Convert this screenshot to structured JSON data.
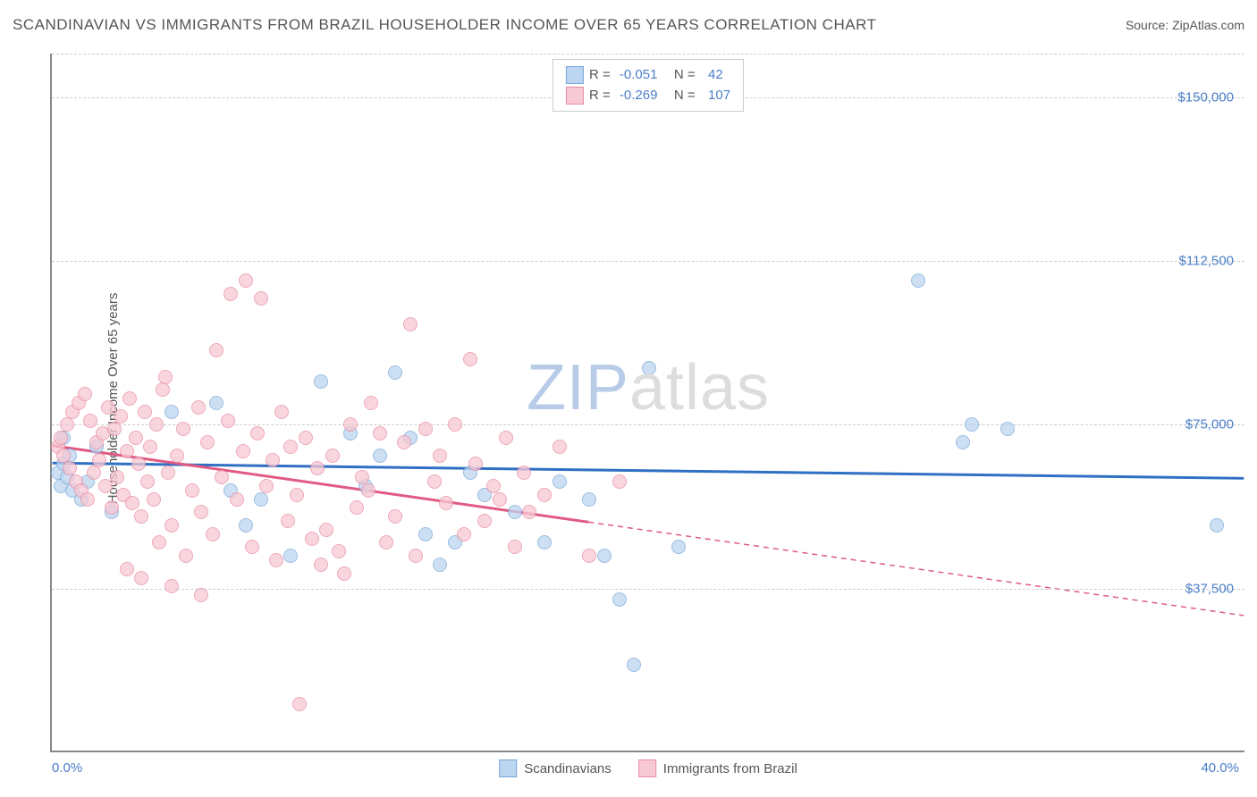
{
  "title": "SCANDINAVIAN VS IMMIGRANTS FROM BRAZIL HOUSEHOLDER INCOME OVER 65 YEARS CORRELATION CHART",
  "source": "Source: ZipAtlas.com",
  "ylabel": "Householder Income Over 65 years",
  "watermark": {
    "part1": "ZIP",
    "part2": "atlas"
  },
  "chart": {
    "type": "scatter",
    "xlim": [
      0,
      40
    ],
    "ylim": [
      0,
      160000
    ],
    "x_ticks": [
      {
        "value": 0,
        "label": "0.0%"
      },
      {
        "value": 40,
        "label": "40.0%"
      }
    ],
    "y_gridlines": [
      {
        "value": 37500,
        "label": "$37,500"
      },
      {
        "value": 75000,
        "label": "$75,000"
      },
      {
        "value": 112500,
        "label": "$112,500"
      },
      {
        "value": 150000,
        "label": "$150,000"
      }
    ],
    "plot_bg": "#ffffff",
    "grid_color": "#cccccc",
    "axis_color": "#888888",
    "tick_label_color": "#4a7ec9",
    "marker_radius": 8
  },
  "series": [
    {
      "name": "Scandinavians",
      "key": "scandinavians",
      "fill": "#bcd5f0",
      "stroke": "#7aa8d8",
      "line_color": "#2f6fc4",
      "R": "-0.051",
      "N": "42",
      "trend": {
        "x1": 0,
        "y1": 66000,
        "x2": 40,
        "y2": 62500,
        "solid_until_x": 40
      },
      "points": [
        [
          0.2,
          64000
        ],
        [
          0.3,
          61000
        ],
        [
          0.4,
          66000
        ],
        [
          0.5,
          63000
        ],
        [
          0.6,
          68000
        ],
        [
          0.7,
          60000
        ],
        [
          0.4,
          72000
        ],
        [
          1.0,
          58000
        ],
        [
          1.2,
          62000
        ],
        [
          1.5,
          70000
        ],
        [
          2.0,
          55000
        ],
        [
          4.0,
          78000
        ],
        [
          5.5,
          80000
        ],
        [
          6.0,
          60000
        ],
        [
          6.5,
          52000
        ],
        [
          7.0,
          58000
        ],
        [
          8.0,
          45000
        ],
        [
          9.0,
          85000
        ],
        [
          10.0,
          73000
        ],
        [
          10.5,
          61000
        ],
        [
          11.0,
          68000
        ],
        [
          11.5,
          87000
        ],
        [
          12.0,
          72000
        ],
        [
          12.5,
          50000
        ],
        [
          13.0,
          43000
        ],
        [
          13.5,
          48000
        ],
        [
          14.0,
          64000
        ],
        [
          14.5,
          59000
        ],
        [
          15.5,
          55000
        ],
        [
          16.5,
          48000
        ],
        [
          17.0,
          62000
        ],
        [
          18.0,
          58000
        ],
        [
          18.5,
          45000
        ],
        [
          19.0,
          35000
        ],
        [
          19.5,
          20000
        ],
        [
          20.0,
          88000
        ],
        [
          21.0,
          47000
        ],
        [
          29.0,
          108000
        ],
        [
          30.5,
          71000
        ],
        [
          30.8,
          75000
        ],
        [
          32.0,
          74000
        ],
        [
          39.0,
          52000
        ]
      ]
    },
    {
      "name": "Immigrants from Brazil",
      "key": "brazil",
      "fill": "#f7c9d4",
      "stroke": "#e88ba3",
      "line_color": "#e05a82",
      "R": "-0.269",
      "N": "107",
      "trend": {
        "x1": 0,
        "y1": 70000,
        "x2": 40,
        "y2": 31000,
        "solid_until_x": 18
      },
      "points": [
        [
          0.2,
          70000
        ],
        [
          0.3,
          72000
        ],
        [
          0.4,
          68000
        ],
        [
          0.5,
          75000
        ],
        [
          0.6,
          65000
        ],
        [
          0.7,
          78000
        ],
        [
          0.8,
          62000
        ],
        [
          0.9,
          80000
        ],
        [
          1.0,
          60000
        ],
        [
          1.1,
          82000
        ],
        [
          1.2,
          58000
        ],
        [
          1.3,
          76000
        ],
        [
          1.4,
          64000
        ],
        [
          1.5,
          71000
        ],
        [
          1.6,
          67000
        ],
        [
          1.7,
          73000
        ],
        [
          1.8,
          61000
        ],
        [
          1.9,
          79000
        ],
        [
          2.0,
          56000
        ],
        [
          2.1,
          74000
        ],
        [
          2.2,
          63000
        ],
        [
          2.3,
          77000
        ],
        [
          2.4,
          59000
        ],
        [
          2.5,
          69000
        ],
        [
          2.6,
          81000
        ],
        [
          2.7,
          57000
        ],
        [
          2.8,
          72000
        ],
        [
          2.9,
          66000
        ],
        [
          3.0,
          54000
        ],
        [
          3.1,
          78000
        ],
        [
          3.2,
          62000
        ],
        [
          3.3,
          70000
        ],
        [
          3.4,
          58000
        ],
        [
          3.5,
          75000
        ],
        [
          3.6,
          48000
        ],
        [
          3.7,
          83000
        ],
        [
          3.8,
          86000
        ],
        [
          3.9,
          64000
        ],
        [
          4.0,
          52000
        ],
        [
          4.2,
          68000
        ],
        [
          4.4,
          74000
        ],
        [
          4.5,
          45000
        ],
        [
          4.7,
          60000
        ],
        [
          4.9,
          79000
        ],
        [
          5.0,
          55000
        ],
        [
          5.2,
          71000
        ],
        [
          5.4,
          50000
        ],
        [
          5.5,
          92000
        ],
        [
          5.7,
          63000
        ],
        [
          5.9,
          76000
        ],
        [
          6.0,
          105000
        ],
        [
          6.2,
          58000
        ],
        [
          6.4,
          69000
        ],
        [
          6.5,
          108000
        ],
        [
          6.7,
          47000
        ],
        [
          6.9,
          73000
        ],
        [
          7.0,
          104000
        ],
        [
          7.2,
          61000
        ],
        [
          7.4,
          67000
        ],
        [
          7.5,
          44000
        ],
        [
          7.7,
          78000
        ],
        [
          7.9,
          53000
        ],
        [
          8.0,
          70000
        ],
        [
          8.2,
          59000
        ],
        [
          8.3,
          11000
        ],
        [
          8.5,
          72000
        ],
        [
          8.7,
          49000
        ],
        [
          8.9,
          65000
        ],
        [
          9.0,
          43000
        ],
        [
          9.2,
          51000
        ],
        [
          9.4,
          68000
        ],
        [
          9.6,
          46000
        ],
        [
          9.8,
          41000
        ],
        [
          10.0,
          75000
        ],
        [
          10.2,
          56000
        ],
        [
          10.4,
          63000
        ],
        [
          10.6,
          60000
        ],
        [
          10.7,
          80000
        ],
        [
          11.0,
          73000
        ],
        [
          11.2,
          48000
        ],
        [
          11.5,
          54000
        ],
        [
          11.8,
          71000
        ],
        [
          12.0,
          98000
        ],
        [
          12.2,
          45000
        ],
        [
          12.5,
          74000
        ],
        [
          12.8,
          62000
        ],
        [
          13.0,
          68000
        ],
        [
          13.2,
          57000
        ],
        [
          13.5,
          75000
        ],
        [
          13.8,
          50000
        ],
        [
          14.0,
          90000
        ],
        [
          14.2,
          66000
        ],
        [
          14.5,
          53000
        ],
        [
          14.8,
          61000
        ],
        [
          15.0,
          58000
        ],
        [
          15.2,
          72000
        ],
        [
          15.5,
          47000
        ],
        [
          15.8,
          64000
        ],
        [
          16.0,
          55000
        ],
        [
          16.5,
          59000
        ],
        [
          17.0,
          70000
        ],
        [
          18.0,
          45000
        ],
        [
          19.0,
          62000
        ],
        [
          2.5,
          42000
        ],
        [
          3.0,
          40000
        ],
        [
          4.0,
          38000
        ],
        [
          5.0,
          36000
        ]
      ]
    }
  ],
  "legend_top_labels": {
    "R": "R =",
    "N": "N ="
  },
  "legend_bottom": [
    {
      "key": "scandinavians",
      "label": "Scandinavians"
    },
    {
      "key": "brazil",
      "label": "Immigrants from Brazil"
    }
  ]
}
